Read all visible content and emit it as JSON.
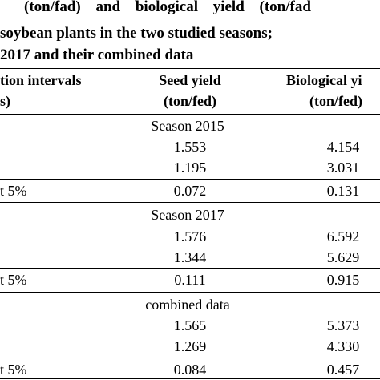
{
  "caption": {
    "line1": "(ton/fad) and biological yield (ton/fad",
    "line2": "soybean plants in the two studied seasons;",
    "line3": "2017 and their combined data"
  },
  "table": {
    "headers": {
      "col1_line1": "tion intervals",
      "col1_line2": "s)",
      "seed_line1": "Seed yield",
      "seed_line2": "(ton/fed)",
      "bio_line1": "Biological yi",
      "bio_line2": "(ton/fed)"
    },
    "sections": [
      {
        "title": "Season 2015",
        "rows": [
          {
            "seed": "1.553",
            "bio": "4.154"
          },
          {
            "seed": "1.195",
            "bio": "3.031"
          }
        ],
        "lsd": {
          "label": "t 5%",
          "seed": "0.072",
          "bio": "0.131"
        }
      },
      {
        "title": "Season 2017",
        "rows": [
          {
            "seed": "1.576",
            "bio": "6.592"
          },
          {
            "seed": "1.344",
            "bio": "5.629"
          }
        ],
        "lsd": {
          "label": "t 5%",
          "seed": "0.111",
          "bio": "0.915"
        }
      },
      {
        "title": "combined data",
        "rows": [
          {
            "seed": "1.565",
            "bio": "5.373"
          },
          {
            "seed": "1.269",
            "bio": "4.330"
          }
        ],
        "lsd": {
          "label": "t 5%",
          "seed": "0.084",
          "bio": "0.457"
        }
      }
    ]
  }
}
